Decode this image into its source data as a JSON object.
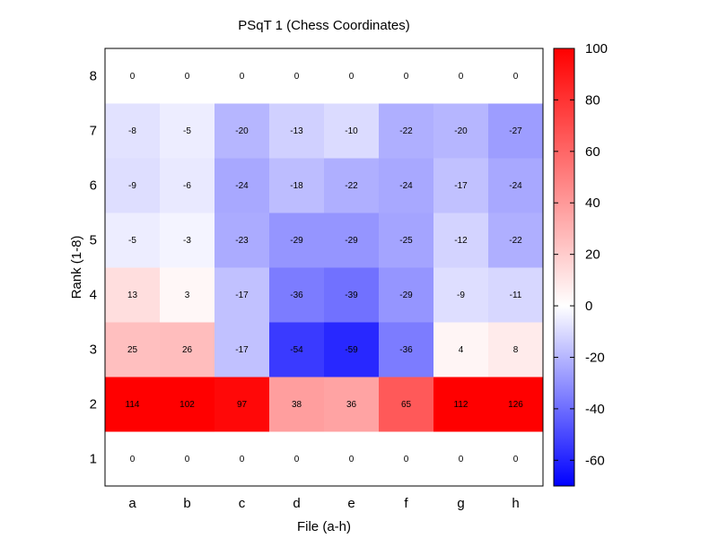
{
  "chart_data": {
    "type": "heatmap",
    "title": "PSqT 1 (Chess Coordinates)",
    "xlabel": "File (a-h)",
    "ylabel": "Rank (1-8)",
    "x_categories": [
      "a",
      "b",
      "c",
      "d",
      "e",
      "f",
      "g",
      "h"
    ],
    "y_categories": [
      "1",
      "2",
      "3",
      "4",
      "5",
      "6",
      "7",
      "8"
    ],
    "values_by_rank": [
      [
        0,
        0,
        0,
        0,
        0,
        0,
        0,
        0
      ],
      [
        114,
        102,
        97,
        38,
        36,
        65,
        112,
        126
      ],
      [
        25,
        26,
        -17,
        -54,
        -59,
        -36,
        4,
        8
      ],
      [
        13,
        3,
        -17,
        -36,
        -39,
        -29,
        -9,
        -11
      ],
      [
        -5,
        -3,
        -23,
        -29,
        -29,
        -25,
        -12,
        -22
      ],
      [
        -9,
        -6,
        -24,
        -18,
        -22,
        -24,
        -17,
        -24
      ],
      [
        -8,
        -5,
        -20,
        -13,
        -10,
        -22,
        -20,
        -27
      ],
      [
        0,
        0,
        0,
        0,
        0,
        0,
        0,
        0
      ]
    ],
    "color_range": [
      -70,
      100
    ],
    "colorbar_ticks": [
      100,
      80,
      60,
      40,
      20,
      0,
      -20,
      -40,
      -60
    ],
    "colors": {
      "low": "#0000ff",
      "mid": "#ffffff",
      "high": "#ff0000"
    }
  }
}
